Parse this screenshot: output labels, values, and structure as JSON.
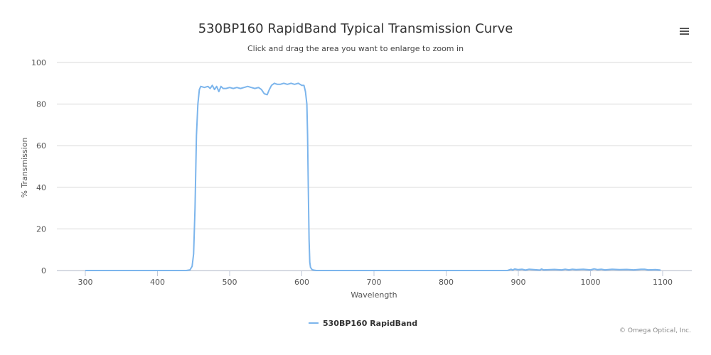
{
  "chart_data": {
    "type": "line",
    "title": "530BP160 RapidBand Typical Transmission Curve",
    "subtitle": "Click and drag the area you want to enlarge to zoom in",
    "xlabel": "Wavelength",
    "ylabel": "% Transmission",
    "xlim": [
      300,
      1100
    ],
    "ylim": [
      0,
      100
    ],
    "x_ticks": [
      "300",
      "400",
      "500",
      "600",
      "700",
      "800",
      "900",
      "1000",
      "1100"
    ],
    "y_ticks": [
      "0",
      "20",
      "40",
      "60",
      "80",
      "100"
    ],
    "grid": "horizontal",
    "legend": "bottom-center",
    "series": [
      {
        "name": "530BP160 RapidBand",
        "color": "#7cb5ec",
        "x": [
          300,
          440,
          445,
          448,
          450,
          452,
          454,
          456,
          458,
          460,
          465,
          470,
          473,
          476,
          479,
          482,
          485,
          488,
          491,
          495,
          500,
          505,
          510,
          515,
          520,
          525,
          530,
          535,
          540,
          544,
          548,
          552,
          555,
          558,
          562,
          566,
          570,
          575,
          580,
          585,
          590,
          595,
          600,
          603,
          605,
          607,
          608,
          609,
          610,
          611,
          612,
          614,
          616,
          620,
          700,
          800,
          885,
          890,
          892,
          895,
          900,
          905,
          910,
          915,
          930,
          932,
          935,
          950,
          960,
          965,
          970,
          975,
          980,
          990,
          1000,
          1005,
          1010,
          1015,
          1020,
          1030,
          1040,
          1050,
          1060,
          1070,
          1075,
          1080,
          1090,
          1097
        ],
        "y": [
          0,
          0,
          0.3,
          2,
          8,
          30,
          65,
          80,
          87,
          88.5,
          88,
          88.5,
          87.5,
          89,
          87,
          88.5,
          86,
          88.5,
          87.5,
          87.5,
          88,
          87.5,
          88,
          87.5,
          88,
          88.5,
          88,
          87.5,
          88,
          87,
          85,
          84.5,
          87,
          89,
          90,
          89.5,
          89.5,
          90,
          89.5,
          90,
          89.5,
          90,
          89,
          89,
          86,
          80,
          65,
          40,
          15,
          4,
          1.5,
          0.5,
          0.2,
          0,
          0,
          0,
          0,
          0.6,
          0.2,
          0.7,
          0.4,
          0.6,
          0.2,
          0.6,
          0.2,
          0.7,
          0.3,
          0.5,
          0.3,
          0.6,
          0.3,
          0.6,
          0.4,
          0.6,
          0.3,
          0.8,
          0.4,
          0.6,
          0.3,
          0.6,
          0.4,
          0.5,
          0.3,
          0.6,
          0.6,
          0.3,
          0.4,
          0.2
        ]
      }
    ]
  },
  "credit": "© Omega Optical, Inc.",
  "menu_icon": "hamburger-menu-icon"
}
